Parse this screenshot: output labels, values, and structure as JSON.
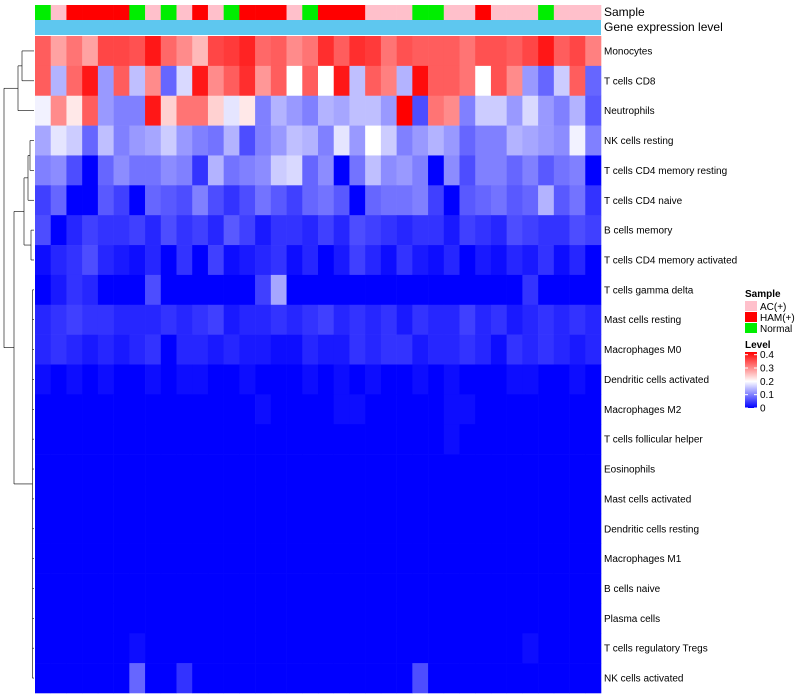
{
  "chart_data": {
    "type": "heatmap",
    "annotations": {
      "sample_label": "Sample",
      "gene_expression_label": "Gene expression level",
      "sample_groups": [
        "Normal",
        "AC(+)",
        "HAM(+)",
        "HAM(+)",
        "HAM(+)",
        "HAM(+)",
        "Normal",
        "AC(+)",
        "Normal",
        "AC(+)",
        "HAM(+)",
        "AC(+)",
        "Normal",
        "HAM(+)",
        "HAM(+)",
        "HAM(+)",
        "AC(+)",
        "Normal",
        "HAM(+)",
        "HAM(+)",
        "HAM(+)",
        "AC(+)",
        "AC(+)",
        "AC(+)",
        "Normal",
        "Normal",
        "AC(+)",
        "AC(+)",
        "HAM(+)",
        "AC(+)",
        "AC(+)",
        "AC(+)",
        "Normal",
        "AC(+)",
        "AC(+)",
        "AC(+)"
      ],
      "gene_expression_values": "constant"
    },
    "rows": [
      "Monocytes",
      "T cells CD8",
      "Neutrophils",
      "NK cells resting",
      "T cells CD4 memory resting",
      "T cells CD4 naive",
      "B cells memory",
      "T cells CD4 memory activated",
      "T cells gamma delta",
      "Mast cells resting",
      "Macrophages M0",
      "Dendritic cells activated",
      "Macrophages M2",
      "T cells follicular helper",
      "Eosinophils",
      "Mast cells activated",
      "Dendritic cells resting",
      "Macrophages M1",
      "B cells naive",
      "Plasma cells",
      "T cells regulatory  Tregs",
      "NK cells activated"
    ],
    "row_values": [
      [
        0.34,
        0.28,
        0.32,
        0.28,
        0.36,
        0.36,
        0.35,
        0.4,
        0.33,
        0.3,
        0.26,
        0.36,
        0.37,
        0.39,
        0.33,
        0.34,
        0.3,
        0.32,
        0.38,
        0.34,
        0.38,
        0.37,
        0.32,
        0.35,
        0.34,
        0.34,
        0.34,
        0.32,
        0.35,
        0.35,
        0.34,
        0.36,
        0.4,
        0.34,
        0.36,
        0.31
      ],
      [
        0.34,
        0.14,
        0.33,
        0.4,
        0.12,
        0.34,
        0.15,
        0.3,
        0.08,
        0.17,
        0.4,
        0.3,
        0.34,
        0.38,
        0.29,
        0.34,
        0.2,
        0.34,
        0.2,
        0.4,
        0.15,
        0.34,
        0.31,
        0.14,
        0.41,
        0.34,
        0.34,
        0.32,
        0.2,
        0.35,
        0.3,
        0.12,
        0.08,
        0.16,
        0.34,
        0.08
      ],
      [
        0.19,
        0.3,
        0.22,
        0.34,
        0.12,
        0.1,
        0.1,
        0.4,
        0.24,
        0.32,
        0.32,
        0.24,
        0.18,
        0.22,
        0.1,
        0.14,
        0.12,
        0.1,
        0.14,
        0.13,
        0.15,
        0.15,
        0.12,
        0.42,
        0.06,
        0.32,
        0.3,
        0.1,
        0.16,
        0.16,
        0.12,
        0.17,
        0.12,
        0.1,
        0.14,
        0.07
      ],
      [
        0.13,
        0.18,
        0.16,
        0.08,
        0.15,
        0.1,
        0.12,
        0.13,
        0.16,
        0.12,
        0.1,
        0.09,
        0.14,
        0.06,
        0.1,
        0.12,
        0.15,
        0.14,
        0.1,
        0.18,
        0.12,
        0.2,
        0.16,
        0.1,
        0.12,
        0.14,
        0.12,
        0.08,
        0.1,
        0.1,
        0.14,
        0.13,
        0.12,
        0.11,
        0.19,
        0.1
      ],
      [
        0.1,
        0.11,
        0.06,
        0.0,
        0.08,
        0.11,
        0.09,
        0.09,
        0.11,
        0.1,
        0.04,
        0.14,
        0.09,
        0.1,
        0.11,
        0.16,
        0.17,
        0.08,
        0.11,
        0.0,
        0.09,
        0.15,
        0.11,
        0.12,
        0.1,
        0.0,
        0.11,
        0.06,
        0.1,
        0.1,
        0.08,
        0.1,
        0.07,
        0.09,
        0.1,
        0.0
      ],
      [
        0.05,
        0.08,
        0.0,
        0.0,
        0.07,
        0.05,
        0.0,
        0.08,
        0.07,
        0.06,
        0.1,
        0.06,
        0.04,
        0.06,
        0.09,
        0.07,
        0.05,
        0.08,
        0.09,
        0.07,
        0.0,
        0.08,
        0.09,
        0.09,
        0.1,
        0.05,
        0.0,
        0.07,
        0.08,
        0.09,
        0.07,
        0.08,
        0.14,
        0.07,
        0.09,
        0.04
      ],
      [
        0.06,
        0.0,
        0.03,
        0.05,
        0.04,
        0.04,
        0.05,
        0.03,
        0.06,
        0.04,
        0.05,
        0.03,
        0.07,
        0.05,
        0.02,
        0.04,
        0.04,
        0.03,
        0.05,
        0.03,
        0.06,
        0.05,
        0.04,
        0.03,
        0.04,
        0.04,
        0.02,
        0.05,
        0.04,
        0.03,
        0.06,
        0.05,
        0.04,
        0.04,
        0.06,
        0.05
      ],
      [
        0.01,
        0.03,
        0.04,
        0.06,
        0.03,
        0.02,
        0.01,
        0.03,
        0.0,
        0.04,
        0.0,
        0.05,
        0.01,
        0.02,
        0.03,
        0.04,
        0.01,
        0.03,
        0.0,
        0.02,
        0.05,
        0.03,
        0.01,
        0.04,
        0.02,
        0.01,
        0.03,
        0.0,
        0.02,
        0.01,
        0.03,
        0.02,
        0.04,
        0.01,
        0.03,
        0.0
      ],
      [
        0.0,
        0.02,
        0.04,
        0.03,
        0.0,
        0.0,
        0.0,
        0.06,
        0.0,
        0.0,
        0.0,
        0.0,
        0.0,
        0.0,
        0.05,
        0.13,
        0.0,
        0.0,
        0.0,
        0.0,
        0.0,
        0.0,
        0.0,
        0.0,
        0.0,
        0.0,
        0.0,
        0.0,
        0.0,
        0.0,
        0.0,
        0.04,
        0.0,
        0.0,
        0.0,
        0.0
      ],
      [
        0.03,
        0.04,
        0.05,
        0.04,
        0.04,
        0.03,
        0.03,
        0.03,
        0.04,
        0.03,
        0.04,
        0.05,
        0.02,
        0.03,
        0.03,
        0.04,
        0.03,
        0.04,
        0.05,
        0.03,
        0.04,
        0.03,
        0.04,
        0.02,
        0.04,
        0.03,
        0.03,
        0.05,
        0.03,
        0.04,
        0.02,
        0.03,
        0.04,
        0.03,
        0.04,
        0.03
      ],
      [
        0.03,
        0.04,
        0.03,
        0.02,
        0.03,
        0.02,
        0.03,
        0.04,
        0.0,
        0.03,
        0.03,
        0.02,
        0.03,
        0.02,
        0.02,
        0.01,
        0.01,
        0.03,
        0.02,
        0.02,
        0.04,
        0.03,
        0.04,
        0.04,
        0.02,
        0.03,
        0.03,
        0.04,
        0.03,
        0.01,
        0.04,
        0.03,
        0.04,
        0.03,
        0.02,
        0.03
      ],
      [
        0.01,
        0.0,
        0.01,
        0.0,
        0.01,
        0.0,
        0.0,
        0.01,
        0.0,
        0.01,
        0.01,
        0.0,
        0.0,
        0.01,
        0.0,
        0.0,
        0.0,
        0.01,
        0.0,
        0.01,
        0.0,
        0.01,
        0.0,
        0.0,
        0.01,
        0.0,
        0.01,
        0.0,
        0.0,
        0.0,
        0.01,
        0.01,
        0.0,
        0.0,
        0.01,
        0.0
      ],
      [
        0.0,
        0.0,
        0.0,
        0.0,
        0.0,
        0.0,
        0.0,
        0.0,
        0.0,
        0.0,
        0.0,
        0.0,
        0.0,
        0.0,
        0.01,
        0.0,
        0.0,
        0.0,
        0.0,
        0.01,
        0.01,
        0.0,
        0.0,
        0.0,
        0.0,
        0.0,
        0.01,
        0.01,
        0.0,
        0.0,
        0.0,
        0.0,
        0.0,
        0.0,
        0.0,
        0.0
      ],
      [
        0.0,
        0.0,
        0.0,
        0.0,
        0.0,
        0.0,
        0.0,
        0.0,
        0.0,
        0.0,
        0.0,
        0.0,
        0.0,
        0.0,
        0.0,
        0.0,
        0.0,
        0.0,
        0.0,
        0.0,
        0.0,
        0.0,
        0.0,
        0.0,
        0.0,
        0.0,
        0.01,
        0.0,
        0.0,
        0.0,
        0.0,
        0.0,
        0.0,
        0.0,
        0.0,
        0.0
      ],
      [
        0.0,
        0.0,
        0.0,
        0.0,
        0.0,
        0.0,
        0.0,
        0.0,
        0.0,
        0.0,
        0.0,
        0.0,
        0.0,
        0.0,
        0.0,
        0.0,
        0.0,
        0.0,
        0.0,
        0.0,
        0.0,
        0.0,
        0.0,
        0.0,
        0.0,
        0.0,
        0.0,
        0.0,
        0.0,
        0.0,
        0.0,
        0.0,
        0.0,
        0.0,
        0.0,
        0.0
      ],
      [
        0.0,
        0.0,
        0.0,
        0.0,
        0.0,
        0.0,
        0.0,
        0.0,
        0.0,
        0.0,
        0.0,
        0.0,
        0.0,
        0.0,
        0.0,
        0.0,
        0.0,
        0.0,
        0.0,
        0.0,
        0.0,
        0.0,
        0.0,
        0.0,
        0.0,
        0.0,
        0.0,
        0.0,
        0.0,
        0.0,
        0.0,
        0.0,
        0.0,
        0.0,
        0.0,
        0.0
      ],
      [
        0.0,
        0.0,
        0.0,
        0.0,
        0.0,
        0.0,
        0.0,
        0.0,
        0.0,
        0.0,
        0.0,
        0.0,
        0.0,
        0.0,
        0.0,
        0.0,
        0.0,
        0.0,
        0.0,
        0.0,
        0.0,
        0.0,
        0.0,
        0.0,
        0.0,
        0.0,
        0.0,
        0.0,
        0.0,
        0.0,
        0.0,
        0.0,
        0.0,
        0.0,
        0.0,
        0.0
      ],
      [
        0.0,
        0.0,
        0.0,
        0.0,
        0.0,
        0.0,
        0.0,
        0.0,
        0.0,
        0.0,
        0.0,
        0.0,
        0.0,
        0.0,
        0.0,
        0.0,
        0.0,
        0.0,
        0.0,
        0.0,
        0.0,
        0.0,
        0.0,
        0.0,
        0.0,
        0.0,
        0.0,
        0.0,
        0.0,
        0.0,
        0.0,
        0.0,
        0.0,
        0.0,
        0.0,
        0.0
      ],
      [
        0.0,
        0.0,
        0.0,
        0.0,
        0.0,
        0.0,
        0.0,
        0.0,
        0.0,
        0.0,
        0.0,
        0.0,
        0.0,
        0.0,
        0.0,
        0.0,
        0.0,
        0.0,
        0.0,
        0.0,
        0.0,
        0.0,
        0.0,
        0.0,
        0.0,
        0.0,
        0.0,
        0.0,
        0.0,
        0.0,
        0.0,
        0.0,
        0.0,
        0.0,
        0.0,
        0.0
      ],
      [
        0.0,
        0.0,
        0.0,
        0.0,
        0.0,
        0.0,
        0.0,
        0.0,
        0.0,
        0.0,
        0.0,
        0.0,
        0.0,
        0.0,
        0.0,
        0.0,
        0.0,
        0.0,
        0.0,
        0.0,
        0.0,
        0.0,
        0.0,
        0.0,
        0.0,
        0.0,
        0.0,
        0.0,
        0.0,
        0.0,
        0.0,
        0.0,
        0.0,
        0.0,
        0.0,
        0.0
      ],
      [
        0.0,
        0.0,
        0.0,
        0.0,
        0.0,
        0.0,
        0.01,
        0.0,
        0.0,
        0.0,
        0.0,
        0.0,
        0.0,
        0.0,
        0.0,
        0.0,
        0.0,
        0.0,
        0.0,
        0.0,
        0.0,
        0.0,
        0.0,
        0.0,
        0.0,
        0.0,
        0.0,
        0.0,
        0.0,
        0.0,
        0.0,
        0.01,
        0.0,
        0.0,
        0.0,
        0.0
      ],
      [
        0.0,
        0.0,
        0.0,
        0.0,
        0.0,
        0.0,
        0.08,
        0.0,
        0.0,
        0.04,
        0.0,
        0.0,
        0.0,
        0.0,
        0.0,
        0.0,
        0.0,
        0.0,
        0.0,
        0.0,
        0.0,
        0.0,
        0.0,
        0.0,
        0.06,
        0.0,
        0.0,
        0.0,
        0.0,
        0.0,
        0.0,
        0.0,
        0.0,
        0.0,
        0.0,
        0.0
      ]
    ],
    "legend": {
      "sample_title": "Sample",
      "sample_entries": [
        {
          "label": "AC(+)",
          "color": "#ffc0cb"
        },
        {
          "label": "HAM(+)",
          "color": "#ff0000"
        },
        {
          "label": "Normal",
          "color": "#00ee00"
        }
      ],
      "level_title": "Level",
      "level_ticks": [
        "0.4",
        "0.3",
        "0.2",
        "0.1",
        "0"
      ],
      "level_range": [
        0,
        0.42
      ]
    },
    "gene_expression_color": "#5ec7ef",
    "color_scale": {
      "low": "#0000ff",
      "mid": "#ffffff",
      "high": "#ff0000",
      "mid_value": 0.2,
      "max_value": 0.42
    },
    "dendrogram": "row clustering (left side)"
  }
}
